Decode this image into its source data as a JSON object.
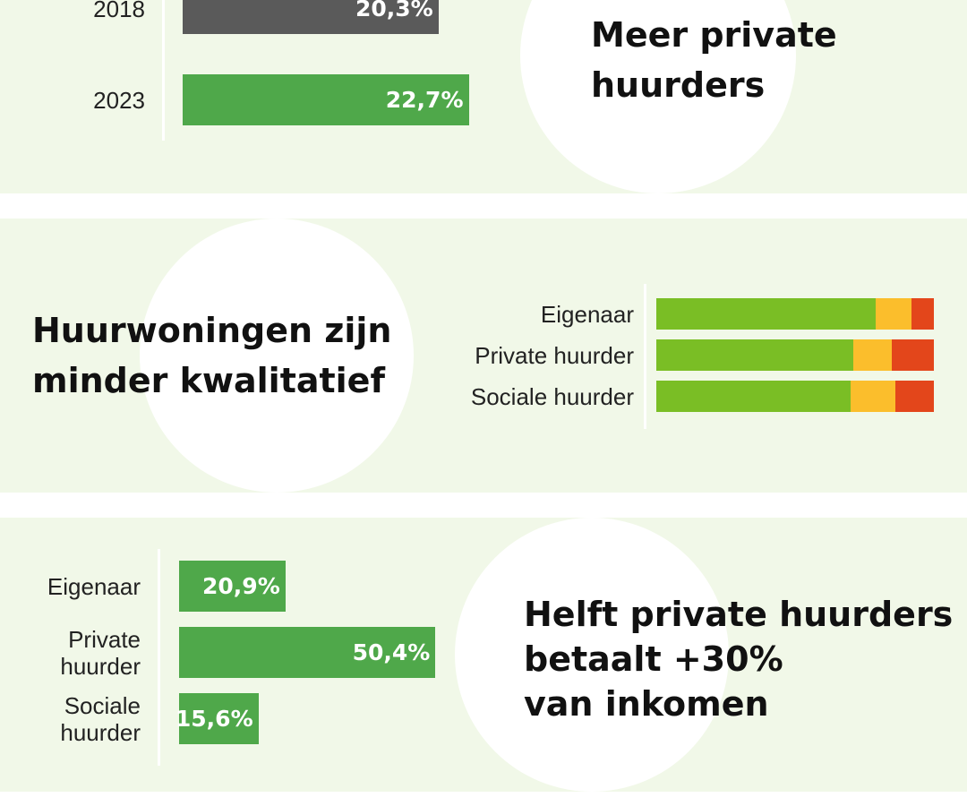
{
  "colors": {
    "background": "#f1f8e8",
    "bar_green": "#4fa84a",
    "bar_grey": "#5a5a5a",
    "good": "#7abe25",
    "medium": "#fbbe2c",
    "bad": "#e3461b"
  },
  "section1": {
    "heading_lines": [
      "Meer private",
      "huurders"
    ]
  },
  "section2": {
    "heading_lines": [
      "Huurwoningen zijn",
      "minder kwalitatief"
    ]
  },
  "section3": {
    "heading_lines": [
      "Helft private huurders",
      "betaalt +30%",
      "van inkomen"
    ]
  },
  "chart_data": [
    {
      "type": "bar",
      "orientation": "horizontal",
      "categories": [
        "2018",
        "2023"
      ],
      "values": [
        20.3,
        22.7
      ],
      "value_labels": [
        "20,3%",
        "22,7%"
      ],
      "unit": "%",
      "xlim": [
        0,
        40
      ],
      "colors": [
        "#5a5a5a",
        "#4fa84a"
      ]
    },
    {
      "type": "bar",
      "orientation": "horizontal",
      "stacked": true,
      "categories": [
        "Eigenaar",
        "Private huurder",
        "Sociale huurder"
      ],
      "series": [
        {
          "values": [
            79,
            71,
            70
          ],
          "color": "#7abe25"
        },
        {
          "values": [
            13,
            14,
            16
          ],
          "color": "#fbbe2c"
        },
        {
          "values": [
            8,
            15,
            14
          ],
          "color": "#e3461b"
        }
      ],
      "xlim": [
        0,
        100
      ]
    },
    {
      "type": "bar",
      "orientation": "horizontal",
      "categories": [
        [
          "Eigenaar"
        ],
        [
          "Private",
          "huurder"
        ],
        [
          "Sociale",
          "huurder"
        ]
      ],
      "values": [
        20.9,
        50.4,
        15.6
      ],
      "value_labels": [
        "20,9%",
        "50,4%",
        "15,6%"
      ],
      "unit": "%",
      "xlim": [
        0,
        88
      ],
      "colors": [
        "#4fa84a",
        "#4fa84a",
        "#4fa84a"
      ]
    }
  ]
}
